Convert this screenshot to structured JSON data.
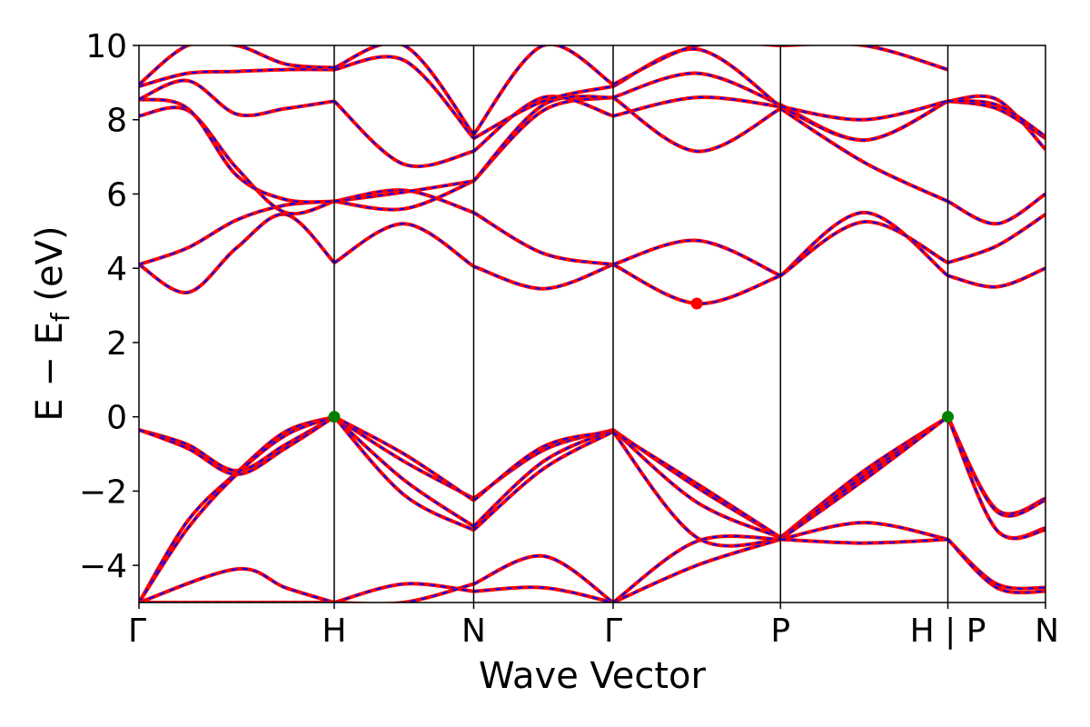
{
  "chart_data": {
    "type": "line",
    "title": "",
    "xlabel": "Wave Vector",
    "ylabel": "E − E_f (eV)",
    "ylabel_main": "E − E",
    "ylabel_sub": "f",
    "ylabel_unit": " (eV)",
    "ylim": [
      -5,
      10
    ],
    "yticks": [
      -4,
      -2,
      0,
      2,
      4,
      6,
      8,
      10
    ],
    "ytick_labels": [
      "−4",
      "−2",
      "0",
      "2",
      "4",
      "6",
      "8",
      "10"
    ],
    "xlim": [
      0,
      6.5
    ],
    "grid": false,
    "colors": {
      "line_solid": "#ff0000",
      "line_dashed": "#0000ff",
      "vbm_marker": "#008000",
      "cbm_marker": "#ff0000"
    },
    "kpoints": [
      {
        "label": "Γ",
        "x": 0
      },
      {
        "label": "H",
        "x": 1.4
      },
      {
        "label": "N",
        "x": 2.4
      },
      {
        "label": "Γ",
        "x": 3.4
      },
      {
        "label": "P",
        "x": 4.6
      },
      {
        "label": "H | P",
        "x": 5.8
      },
      {
        "label": "N",
        "x": 6.5
      }
    ],
    "markers": [
      {
        "name": "VBM",
        "x": 1.4,
        "y": 0.0,
        "color": "#008000"
      },
      {
        "name": "VBM",
        "x": 5.8,
        "y": 0.0,
        "color": "#008000"
      },
      {
        "name": "CBM",
        "x": 4.0,
        "y": 3.05,
        "color": "#ff0000"
      }
    ],
    "bands": [
      {
        "x": [
          0,
          0.35,
          0.7,
          1.05,
          1.4,
          1.9,
          2.4,
          2.9,
          3.4,
          4.0,
          4.6,
          5.2,
          5.8,
          6.15,
          6.5
        ],
        "y": [
          -0.35,
          -0.75,
          -1.45,
          -0.75,
          0.0,
          -1.2,
          -2.2,
          -0.9,
          -0.35,
          -1.9,
          -3.25,
          -1.45,
          0.0,
          -2.5,
          -2.2
        ]
      },
      {
        "x": [
          0,
          0.35,
          0.7,
          1.05,
          1.4,
          1.9,
          2.4,
          2.9,
          3.4,
          4.0,
          4.6,
          5.2,
          5.8,
          6.15,
          6.5
        ],
        "y": [
          -0.35,
          -0.85,
          -1.55,
          -0.85,
          0.0,
          -1.7,
          -2.95,
          -1.2,
          -0.35,
          -2.3,
          -3.25,
          -1.55,
          0.0,
          -2.55,
          -2.25
        ]
      },
      {
        "x": [
          0,
          0.35,
          0.7,
          1.05,
          1.4,
          1.9,
          2.4,
          2.9,
          3.4,
          4.0,
          4.6,
          5.2,
          5.8,
          6.15,
          6.5
        ],
        "y": [
          -5.0,
          -2.8,
          -1.5,
          -0.4,
          0.0,
          -1.0,
          -2.25,
          -0.8,
          -0.4,
          -1.8,
          -3.25,
          -1.6,
          0.0,
          -3.05,
          -3.0
        ]
      },
      {
        "x": [
          0,
          0.35,
          0.7,
          1.05,
          1.4,
          1.9,
          2.4,
          2.9,
          3.4,
          4.0,
          4.6,
          5.2,
          5.8,
          6.15,
          6.5
        ],
        "y": [
          -5.0,
          -3.0,
          -1.55,
          -0.5,
          0.0,
          -2.1,
          -3.05,
          -1.4,
          -0.4,
          -3.25,
          -3.3,
          -1.7,
          0.0,
          -3.05,
          -3.05
        ]
      },
      {
        "x": [
          0,
          0.7,
          1.05,
          1.4,
          1.9,
          2.4,
          2.9,
          3.4,
          4.0,
          4.6,
          5.2,
          5.8,
          6.15,
          6.5
        ],
        "y": [
          -5.0,
          -4.1,
          -4.6,
          -5.0,
          -4.5,
          -4.7,
          -4.6,
          -5.0,
          -4.0,
          -3.3,
          -2.85,
          -3.3,
          -4.5,
          -4.6
        ]
      },
      {
        "x": [
          0,
          0.7,
          1.05,
          1.4,
          1.9,
          2.4,
          2.9,
          3.4,
          4.0,
          4.6,
          5.2,
          5.8,
          6.15,
          6.5
        ],
        "y": [
          -5.0,
          -5.0,
          -5.0,
          -5.0,
          -5.0,
          -4.5,
          -3.75,
          -5.0,
          -3.35,
          -3.3,
          -3.4,
          -3.3,
          -4.6,
          -4.7
        ]
      },
      {
        "x": [
          0,
          0.35,
          0.7,
          1.05,
          1.4,
          1.9,
          2.4,
          2.9,
          3.4,
          4.0,
          4.6,
          5.2,
          5.8,
          6.15,
          6.5
        ],
        "y": [
          4.1,
          3.35,
          4.55,
          5.45,
          4.15,
          5.2,
          4.05,
          3.45,
          4.1,
          3.05,
          3.8,
          5.5,
          3.8,
          3.5,
          4.0
        ]
      },
      {
        "x": [
          0,
          0.35,
          0.7,
          1.05,
          1.4,
          1.9,
          2.4,
          2.9,
          3.4,
          4.0,
          4.6,
          5.2,
          5.8,
          6.15,
          6.5
        ],
        "y": [
          4.1,
          4.55,
          5.3,
          5.7,
          5.8,
          6.1,
          5.5,
          4.4,
          4.1,
          4.75,
          3.8,
          5.25,
          4.15,
          4.6,
          5.45
        ]
      },
      {
        "x": [
          0,
          0.35,
          0.7,
          1.05,
          1.4,
          1.9,
          2.4,
          2.9,
          3.4,
          4.0,
          4.6,
          5.2,
          5.8,
          6.15,
          6.5
        ],
        "y": [
          8.1,
          8.25,
          6.7,
          5.5,
          5.8,
          5.6,
          6.35,
          8.25,
          8.6,
          7.15,
          8.3,
          6.85,
          5.8,
          5.2,
          6.0
        ]
      },
      {
        "x": [
          0,
          0.35,
          0.7,
          1.05,
          1.4,
          1.9,
          2.4,
          2.9,
          3.4,
          4.0,
          4.6,
          5.2,
          5.8,
          6.15,
          6.5
        ],
        "y": [
          8.55,
          8.3,
          6.5,
          5.85,
          5.8,
          6.05,
          6.35,
          8.4,
          8.6,
          9.25,
          8.4,
          7.45,
          8.5,
          8.55,
          7.2
        ]
      },
      {
        "x": [
          0,
          0.35,
          0.7,
          1.05,
          1.4,
          1.9,
          2.4,
          2.9,
          3.4,
          4.0,
          4.6,
          5.2,
          5.8,
          6.15,
          6.5
        ],
        "y": [
          8.55,
          9.05,
          8.15,
          8.3,
          8.5,
          6.8,
          7.15,
          8.6,
          8.1,
          8.6,
          8.35,
          7.45,
          8.5,
          8.3,
          7.5
        ]
      },
      {
        "x": [
          0,
          0.35,
          0.7,
          1.05,
          1.4,
          1.9,
          2.4,
          2.9,
          3.4,
          4.0,
          4.6,
          5.2,
          5.8,
          6.15,
          6.5
        ],
        "y": [
          8.9,
          9.25,
          9.3,
          9.35,
          9.35,
          9.6,
          7.5,
          8.5,
          8.9,
          9.9,
          8.35,
          8.0,
          8.5,
          8.4,
          7.55
        ]
      },
      {
        "x": [
          0,
          0.35,
          0.7,
          1.05,
          1.4,
          1.9,
          2.4,
          2.9,
          3.4,
          4.0,
          4.6,
          5.2,
          5.8
        ],
        "y": [
          8.95,
          10.0,
          10.0,
          9.5,
          9.4,
          10.0,
          7.6,
          10.0,
          8.95,
          10.0,
          10.0,
          10.0,
          9.35
        ]
      }
    ]
  }
}
